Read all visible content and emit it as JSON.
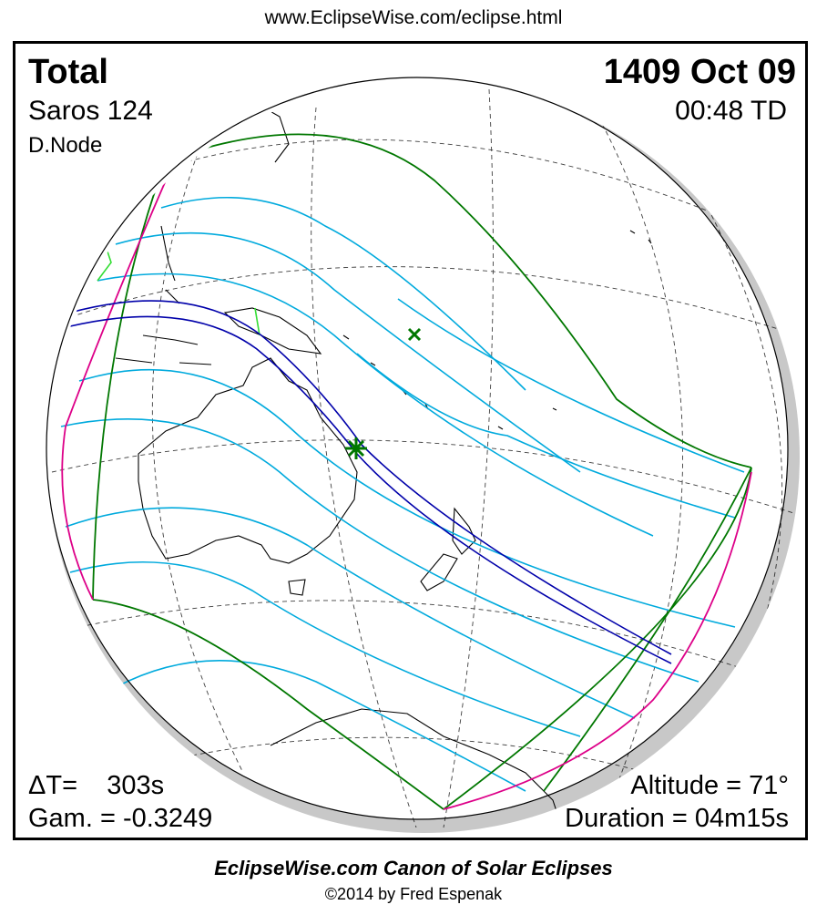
{
  "site_url": "www.EclipseWise.com/eclipse.html",
  "eclipse": {
    "type": "Total",
    "saros": "Saros 124",
    "node": "D.Node",
    "date": "1409 Oct 09",
    "time": "00:48 TD",
    "delta_t": "ΔT=    303s",
    "gamma": "Gam. = -0.3249",
    "altitude": "Altitude = 71°",
    "duration": "Duration = 04m15s"
  },
  "footer": {
    "title": "EclipseWise.com Canon of Solar Eclipses",
    "copyright": "©2014 by Fred Espenak"
  },
  "colors": {
    "central_path": "#0000aa",
    "penumbra_lines": "#00aadd",
    "penumbra_limits": "#007700",
    "rise_set_curves": "#dd0088",
    "greatest_eclipse": "#007700",
    "night_shadow": "#c8c8c8"
  },
  "markers": {
    "greatest_eclipse": "star-icon",
    "subsolar_point": "x-mark-icon"
  }
}
